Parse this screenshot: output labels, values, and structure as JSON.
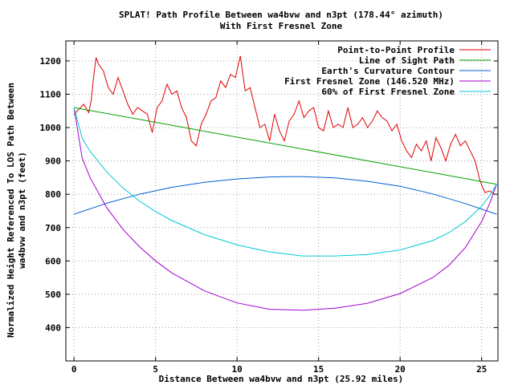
{
  "chart_data": {
    "type": "line",
    "title": "SPLAT! Path Profile Between wa4bvw and n3pt (178.44° azimuth)",
    "subtitle": "With First Fresnel Zone",
    "xlabel": "Distance Between wa4bvw and n3pt (25.92 miles)",
    "ylabel_line1": "Normalized Height Referenced To LOS Path Between",
    "ylabel_line2": "wa4bvw and n3pt (feet)",
    "xlim": [
      -0.5,
      26
    ],
    "ylim": [
      300,
      1260
    ],
    "x_ticks": [
      0,
      5,
      10,
      15,
      20,
      25
    ],
    "y_ticks": [
      400,
      500,
      600,
      700,
      800,
      900,
      1000,
      1100,
      1200
    ],
    "grid": true,
    "legend_position": "top-right",
    "series": [
      {
        "name": "Point-to-Point Profile",
        "color": "#e00000",
        "x": [
          0,
          0.3,
          0.6,
          0.9,
          1.05,
          1.2,
          1.35,
          1.5,
          1.8,
          2.1,
          2.4,
          2.7,
          3.0,
          3.3,
          3.6,
          3.9,
          4.2,
          4.5,
          4.8,
          5.1,
          5.4,
          5.7,
          6.0,
          6.3,
          6.6,
          6.9,
          7.2,
          7.5,
          7.8,
          8.1,
          8.4,
          8.7,
          9.0,
          9.3,
          9.6,
          9.9,
          10.2,
          10.5,
          10.8,
          11.1,
          11.4,
          11.7,
          12.0,
          12.3,
          12.6,
          12.9,
          13.2,
          13.5,
          13.8,
          14.1,
          14.4,
          14.7,
          15.0,
          15.3,
          15.6,
          15.9,
          16.2,
          16.5,
          16.8,
          17.1,
          17.4,
          17.7,
          18.0,
          18.3,
          18.6,
          18.9,
          19.2,
          19.5,
          19.8,
          20.1,
          20.4,
          20.7,
          21.0,
          21.3,
          21.6,
          21.9,
          22.2,
          22.5,
          22.8,
          23.1,
          23.4,
          23.7,
          24.0,
          24.3,
          24.6,
          24.9,
          25.2,
          25.5,
          25.8
        ],
        "y": [
          1040,
          1055,
          1070,
          1045,
          1080,
          1150,
          1210,
          1190,
          1170,
          1120,
          1100,
          1150,
          1110,
          1070,
          1040,
          1060,
          1050,
          1040,
          985,
          1060,
          1080,
          1130,
          1100,
          1110,
          1060,
          1030,
          960,
          945,
          1010,
          1040,
          1080,
          1090,
          1140,
          1120,
          1160,
          1150,
          1215,
          1110,
          1120,
          1060,
          1000,
          1010,
          960,
          1040,
          990,
          960,
          1020,
          1040,
          1080,
          1030,
          1050,
          1060,
          1000,
          990,
          1050,
          1000,
          1010,
          1000,
          1060,
          1000,
          1010,
          1030,
          1000,
          1020,
          1050,
          1030,
          1020,
          990,
          1010,
          960,
          930,
          910,
          950,
          930,
          960,
          900,
          970,
          940,
          900,
          950,
          980,
          945,
          960,
          930,
          900,
          840,
          805,
          810,
          800
        ]
      },
      {
        "name": "Line of Sight Path",
        "color": "#00a000",
        "x": [
          0,
          25.92
        ],
        "y": [
          1060,
          830
        ]
      },
      {
        "name": "Earth's Curvature Contour",
        "color": "#0060d0",
        "x": [
          0,
          2,
          4,
          6,
          8,
          10,
          12,
          13,
          14,
          16,
          18,
          20,
          22,
          24,
          25.92
        ],
        "y": [
          740,
          773,
          800,
          821,
          836,
          846,
          852,
          853,
          853,
          849,
          839,
          824,
          801,
          772,
          740
        ]
      },
      {
        "name": "First Fresnel Zone (146.520 MHz)",
        "color": "#a000d0",
        "x": [
          0,
          0.5,
          1,
          2,
          3,
          4,
          5,
          6,
          8,
          10,
          12,
          14,
          16,
          18,
          20,
          22,
          23,
          24,
          25,
          25.5,
          25.92
        ],
        "y": [
          1060,
          908,
          848,
          760,
          695,
          643,
          600,
          564,
          510,
          474,
          455,
          452,
          458,
          473,
          502,
          550,
          587,
          640,
          718,
          773,
          830
        ]
      },
      {
        "name": "60% of First Fresnel Zone",
        "color": "#00c8d8",
        "x": [
          0,
          0.5,
          1,
          2,
          3,
          4,
          5,
          6,
          8,
          10,
          12,
          14,
          16,
          18,
          20,
          22,
          23,
          24,
          25,
          25.5,
          25.92
        ],
        "y": [
          1060,
          968,
          928,
          867,
          819,
          780,
          748,
          721,
          679,
          648,
          627,
          615,
          615,
          619,
          633,
          661,
          685,
          718,
          764,
          796,
          830
        ]
      }
    ]
  }
}
